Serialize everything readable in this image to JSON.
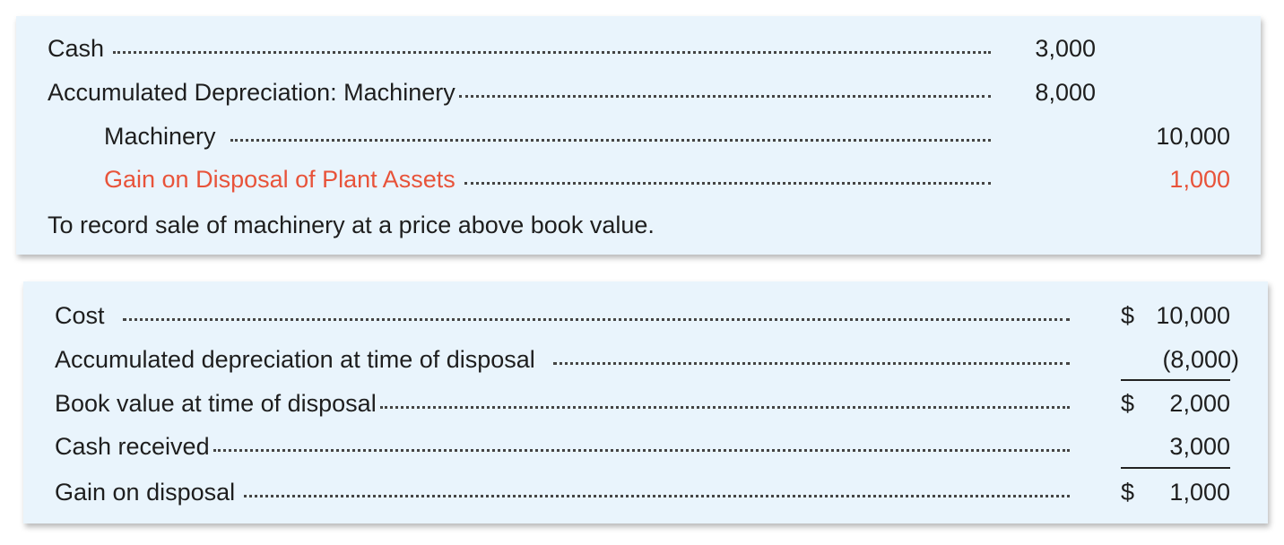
{
  "journal_entry": {
    "lines": [
      {
        "account": "Cash",
        "debit": "3,000",
        "credit": ""
      },
      {
        "account": "Accumulated Depreciation: Machinery",
        "debit": "8,000",
        "credit": ""
      },
      {
        "account": "Machinery",
        "debit": "",
        "credit": "10,000"
      },
      {
        "account": "Gain on Disposal of Plant Assets",
        "debit": "",
        "credit": "1,000"
      }
    ],
    "explanation": "To record sale of machinery at a price above book value."
  },
  "computation": {
    "rows": [
      {
        "label": "Cost",
        "currency": "$",
        "amount": "10,000"
      },
      {
        "label": "Accumulated depreciation at time of disposal",
        "currency": "",
        "amount": "(8,000)"
      },
      {
        "label": "Book value at time of disposal",
        "currency": "$",
        "amount": "2,000"
      },
      {
        "label": "Cash received",
        "currency": "",
        "amount": "3,000"
      },
      {
        "label": "Gain on disposal",
        "currency": "$",
        "amount": "1,000"
      }
    ]
  },
  "colors": {
    "panel_background": "#e9f4fc",
    "highlight_text": "#e8533a",
    "text": "#1e1e1e"
  }
}
